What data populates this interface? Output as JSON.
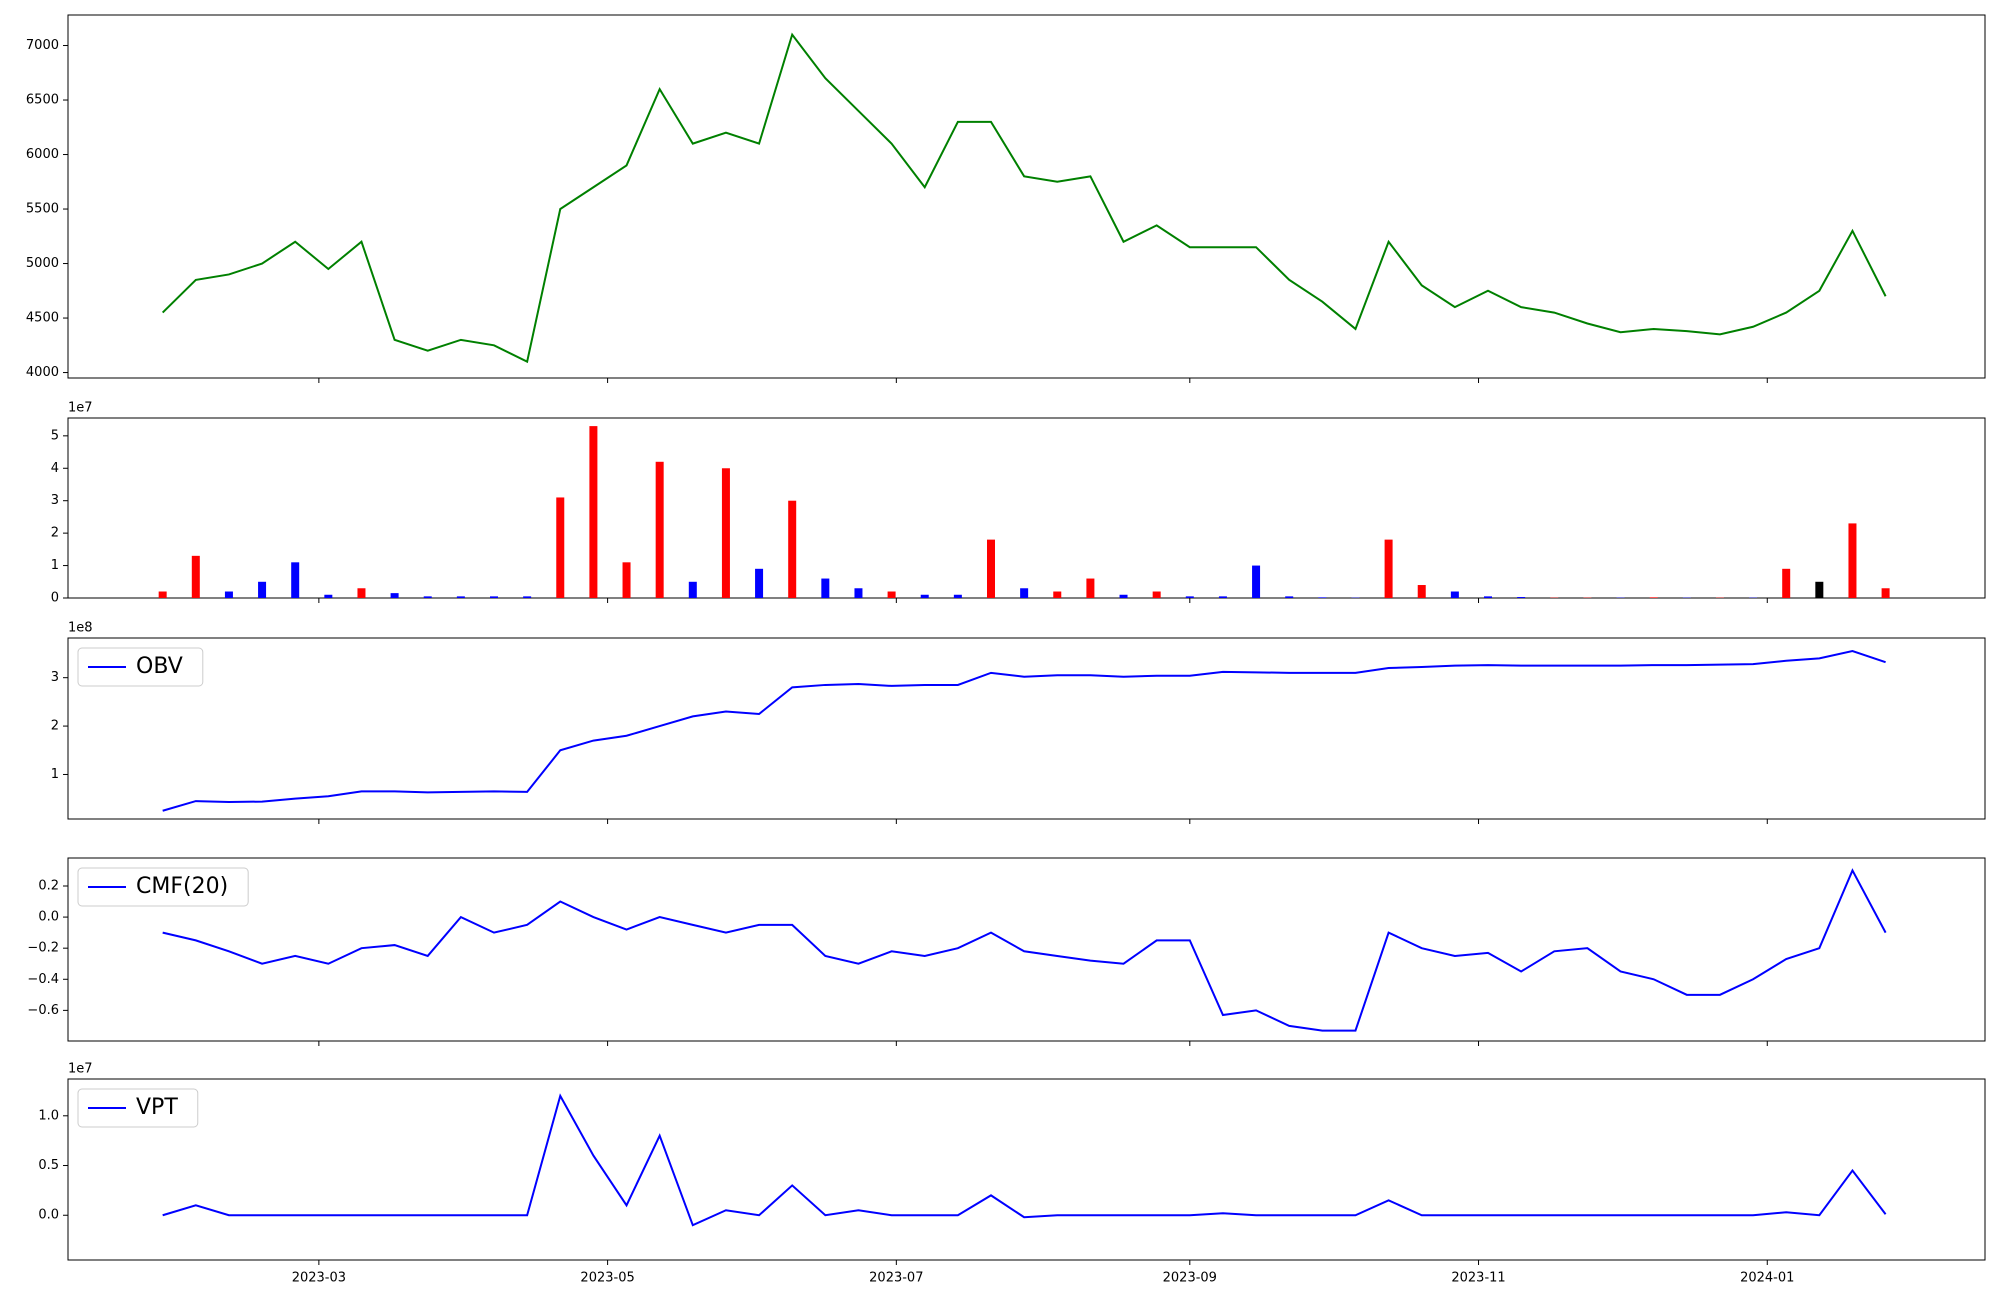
{
  "chart_data": [
    {
      "type": "line",
      "ylim": [
        3950,
        7280
      ],
      "yticks": [
        4000,
        4500,
        5000,
        5500,
        6000,
        6500,
        7000
      ],
      "series": [
        {
          "color": "green",
          "values": [
            4550,
            4850,
            4900,
            5000,
            5200,
            4950,
            5200,
            4300,
            4200,
            4300,
            4250,
            4100,
            5500,
            5700,
            5900,
            6600,
            6100,
            6200,
            6100,
            7100,
            6700,
            6400,
            6100,
            5700,
            6300,
            6300,
            5800,
            5750,
            5800,
            5200,
            5350,
            5150,
            5150,
            5150,
            4850,
            4650,
            4400,
            5200,
            4800,
            4600,
            4750,
            4600,
            4550,
            4450,
            4370,
            4400,
            4380,
            4350,
            4420,
            4550,
            4750,
            5300,
            4700
          ]
        }
      ]
    },
    {
      "type": "bar",
      "offset_label": "1e7",
      "ylim": [
        0,
        55500000
      ],
      "yticks": [
        0,
        {
          "value": 10000000,
          "label": "1"
        },
        {
          "value": 20000000,
          "label": "2"
        },
        {
          "value": 30000000,
          "label": "3"
        },
        {
          "value": 40000000,
          "label": "4"
        },
        {
          "value": 50000000,
          "label": "5"
        }
      ],
      "values": [
        2000000,
        13000000,
        2000000,
        5000000,
        11000000,
        1000000,
        3000000,
        1500000,
        500000,
        500000,
        500000,
        500000,
        31000000,
        53000000,
        11000000,
        42000000,
        5000000,
        40000000,
        9000000,
        30000000,
        6000000,
        3000000,
        2000000,
        1000000,
        1000000,
        18000000,
        3000000,
        2000000,
        6000000,
        1000000,
        2000000,
        500000,
        500000,
        10000000,
        500000,
        200000,
        100000,
        18000000,
        4000000,
        2000000,
        500000,
        300000,
        100000,
        100000,
        100000,
        200000,
        100000,
        100000,
        100000,
        9000000,
        5000000,
        23000000,
        3000000
      ],
      "colors": [
        "red",
        "red",
        "blue",
        "blue",
        "blue",
        "blue",
        "red",
        "blue",
        "blue",
        "blue",
        "blue",
        "blue",
        "red",
        "red",
        "red",
        "red",
        "blue",
        "red",
        "blue",
        "red",
        "blue",
        "blue",
        "red",
        "blue",
        "blue",
        "red",
        "blue",
        "red",
        "red",
        "blue",
        "red",
        "blue",
        "blue",
        "blue",
        "blue",
        "blue",
        "blue",
        "red",
        "red",
        "blue",
        "blue",
        "blue",
        "red",
        "red",
        "blue",
        "red",
        "blue",
        "red",
        "blue",
        "red",
        "black",
        "red",
        "red"
      ]
    },
    {
      "type": "line",
      "offset_label": "1e8",
      "ylim": [
        8000000,
        382000000
      ],
      "legend": "upper left",
      "yticks": [
        {
          "value": 100000000,
          "label": "1"
        },
        {
          "value": 200000000,
          "label": "2"
        },
        {
          "value": 300000000,
          "label": "3"
        }
      ],
      "series": [
        {
          "name": "OBV",
          "color": "blue",
          "values": [
            25000000,
            45000000,
            43000000,
            44000000,
            50000000,
            55000000,
            65000000,
            65000000,
            63000000,
            64000000,
            65000000,
            64000000,
            150000000,
            170000000,
            180000000,
            200000000,
            220000000,
            230000000,
            225000000,
            280000000,
            285000000,
            287000000,
            283000000,
            285000000,
            285000000,
            310000000,
            302000000,
            305000000,
            305000000,
            302000000,
            304000000,
            304000000,
            312000000,
            311000000,
            310000000,
            310000000,
            310000000,
            320000000,
            322000000,
            325000000,
            326000000,
            325000000,
            325000000,
            325000000,
            325000000,
            326000000,
            326000000,
            327000000,
            328000000,
            335000000,
            340000000,
            355000000,
            332000000
          ]
        }
      ]
    },
    {
      "type": "line",
      "ylim": [
        -0.797,
        0.38
      ],
      "legend": "upper left",
      "yticks": [
        {
          "value": -0.6,
          "label": "−0.6"
        },
        {
          "value": -0.4,
          "label": "−0.4"
        },
        {
          "value": -0.2,
          "label": "−0.2"
        },
        {
          "value": 0,
          "label": "0.0"
        },
        0.2
      ],
      "series": [
        {
          "name": "CMF(20)",
          "color": "blue",
          "values": [
            -0.1,
            -0.15,
            -0.22,
            -0.3,
            -0.25,
            -0.3,
            -0.2,
            -0.18,
            -0.25,
            0.0,
            -0.1,
            -0.05,
            0.1,
            0.0,
            -0.08,
            0.0,
            -0.05,
            -0.1,
            -0.05,
            -0.05,
            -0.25,
            -0.3,
            -0.22,
            -0.25,
            -0.2,
            -0.1,
            -0.22,
            -0.25,
            -0.28,
            -0.3,
            -0.15,
            -0.15,
            -0.63,
            -0.6,
            -0.7,
            -0.73,
            -0.73,
            -0.1,
            -0.2,
            -0.25,
            -0.23,
            -0.35,
            -0.22,
            -0.2,
            -0.35,
            -0.4,
            -0.5,
            -0.5,
            -0.4,
            -0.27,
            -0.2,
            0.3,
            -0.1
          ]
        }
      ]
    },
    {
      "type": "line",
      "offset_label": "1e7",
      "ylim": [
        -4500000,
        13700000
      ],
      "legend": "upper left",
      "yticks": [
        {
          "value": 0,
          "label": "0.0"
        },
        {
          "value": 5000000,
          "label": "0.5"
        },
        {
          "value": 10000000,
          "label": "1.0"
        }
      ],
      "x": [
        "2023-01-27",
        "2023-02-03",
        "2023-02-10",
        "2023-02-17",
        "2023-02-24",
        "2023-03-03",
        "2023-03-10",
        "2023-03-17",
        "2023-03-24",
        "2023-03-31",
        "2023-04-07",
        "2023-04-14",
        "2023-04-21",
        "2023-04-28",
        "2023-05-05",
        "2023-05-12",
        "2023-05-19",
        "2023-05-26",
        "2023-06-02",
        "2023-06-09",
        "2023-06-16",
        "2023-06-23",
        "2023-06-30",
        "2023-07-07",
        "2023-07-14",
        "2023-07-21",
        "2023-07-28",
        "2023-08-04",
        "2023-08-11",
        "2023-08-18",
        "2023-08-25",
        "2023-09-01",
        "2023-09-08",
        "2023-09-15",
        "2023-09-22",
        "2023-09-29",
        "2023-10-06",
        "2023-10-13",
        "2023-10-20",
        "2023-10-27",
        "2023-11-03",
        "2023-11-10",
        "2023-11-17",
        "2023-11-24",
        "2023-12-01",
        "2023-12-08",
        "2023-12-15",
        "2023-12-22",
        "2023-12-29",
        "2024-01-05",
        "2024-01-12",
        "2024-01-19",
        "2024-01-26"
      ],
      "xlim": [
        "2023-01-07",
        "2024-02-16"
      ],
      "xticks": [
        {
          "value": "2023-03-01",
          "label": "2023-03"
        },
        {
          "value": "2023-05-01",
          "label": "2023-05"
        },
        {
          "value": "2023-07-01",
          "label": "2023-07"
        },
        {
          "value": "2023-09-01",
          "label": "2023-09"
        },
        {
          "value": "2023-11-01",
          "label": "2023-11"
        },
        {
          "value": "2024-01-01",
          "label": "2024-01"
        }
      ],
      "series": [
        {
          "name": "VPT",
          "color": "blue",
          "values": [
            0,
            1000000,
            0,
            0,
            0,
            0,
            0,
            0,
            0,
            0,
            0,
            0,
            12000000,
            6000000,
            1000000,
            8000000,
            -1000000,
            500000,
            0,
            3000000,
            0,
            500000,
            0,
            0,
            0,
            2000000,
            -200000,
            0,
            0,
            0,
            0,
            0,
            200000,
            0,
            0,
            0,
            0,
            1500000,
            0,
            0,
            0,
            0,
            0,
            0,
            0,
            0,
            0,
            0,
            0,
            300000,
            0,
            4500000,
            100000
          ]
        }
      ]
    }
  ]
}
